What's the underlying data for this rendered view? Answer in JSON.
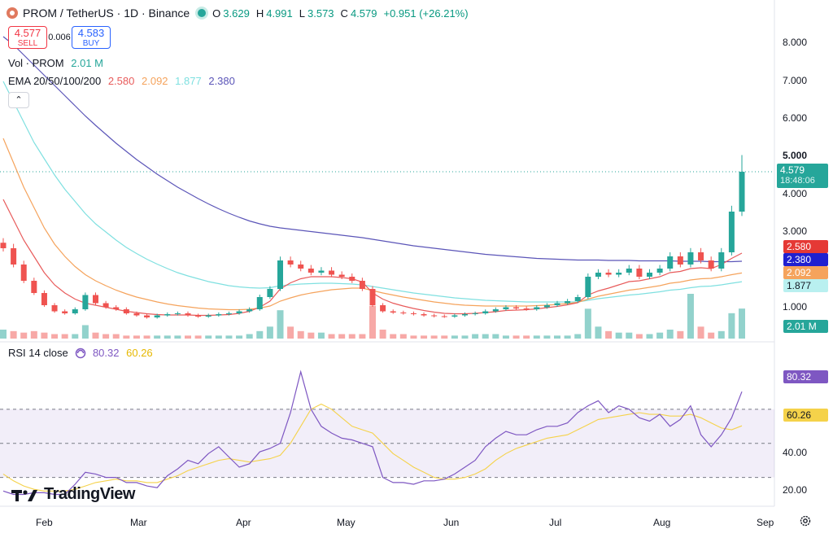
{
  "header": {
    "symbol": "PROM / TetherUS · 1D · Binance",
    "open_label": "O",
    "open": "3.629",
    "high_label": "H",
    "high": "4.991",
    "low_label": "L",
    "low": "3.573",
    "close_label": "C",
    "close": "4.579",
    "change": "+0.951 (+26.21%)"
  },
  "trade": {
    "sell_price": "4.577",
    "sell_label": "SELL",
    "spread": "0.006",
    "buy_price": "4.583",
    "buy_label": "BUY"
  },
  "legend": {
    "vol_label": "Vol · PROM",
    "vol_value": "2.01 M",
    "ema_label": "EMA 20/50/100/200",
    "ema20": "2.580",
    "ema50": "2.092",
    "ema100": "1.877",
    "ema200": "2.380",
    "rsi_label": "RSI 14 close",
    "rsi_value": "80.32",
    "rsi_ma_value": "60.26"
  },
  "collapse_icon": "chevron-up",
  "price_axis": [
    "8.000",
    "7.000",
    "6.000",
    "5.000",
    "4.000",
    "3.000",
    "1.000"
  ],
  "rsi_axis": [
    "40.00",
    "20.00"
  ],
  "time_axis": [
    "Feb",
    "Mar",
    "Apr",
    "May",
    "Jun",
    "Jul",
    "Aug",
    "Sep"
  ],
  "tags": {
    "price": "4.579",
    "countdown": "18:48:06",
    "ema20": "2.580",
    "ema200": "2.380",
    "ema50": "2.092",
    "ema100": "1.877",
    "volume": "2.01 M",
    "rsi": "80.32",
    "rsi_ma": "60.26"
  },
  "logo_text": "TradingView",
  "colors": {
    "up": "#26a69a",
    "down": "#ef5350",
    "ema20": "#e85b5b",
    "ema50": "#f5a35c",
    "ema100": "#7fe0e0",
    "ema200": "#5b55b8",
    "rsi": "#7e57c2",
    "rsi_ma": "#f5d24a"
  },
  "chart_data": {
    "type": "candlestick",
    "x": [
      "Jan 21",
      "Jan 24",
      "Jan 27",
      "Jan 30",
      "Feb 2",
      "Feb 5",
      "Feb 8",
      "Feb 11",
      "Feb 14",
      "Feb 17",
      "Feb 20",
      "Feb 23",
      "Feb 26",
      "Mar 1",
      "Mar 4",
      "Mar 7",
      "Mar 10",
      "Mar 13",
      "Mar 16",
      "Mar 19",
      "Mar 22",
      "Mar 25",
      "Mar 28",
      "Mar 31",
      "Apr 3",
      "Apr 6",
      "Apr 9",
      "Apr 12",
      "Apr 15",
      "Apr 18",
      "Apr 21",
      "Apr 24",
      "Apr 27",
      "Apr 30",
      "May 3",
      "May 6",
      "May 9",
      "May 12",
      "May 15",
      "May 18",
      "May 21",
      "May 24",
      "May 27",
      "May 30",
      "Jun 2",
      "Jun 5",
      "Jun 8",
      "Jun 11",
      "Jun 14",
      "Jun 17",
      "Jun 20",
      "Jun 23",
      "Jun 26",
      "Jun 29",
      "Jul 2",
      "Jul 5",
      "Jul 8",
      "Jul 11",
      "Jul 14",
      "Jul 17",
      "Jul 20",
      "Jul 23",
      "Jul 26",
      "Jul 29",
      "Aug 1",
      "Aug 4",
      "Aug 7",
      "Aug 10",
      "Aug 13",
      "Aug 16",
      "Aug 19",
      "Aug 22",
      "Aug 24"
    ],
    "close": [
      2.7,
      2.3,
      1.9,
      1.6,
      1.3,
      1.15,
      1.1,
      1.2,
      1.55,
      1.35,
      1.25,
      1.2,
      1.1,
      1.05,
      1.0,
      1.05,
      1.08,
      1.1,
      1.05,
      1.02,
      1.05,
      1.08,
      1.1,
      1.15,
      1.2,
      1.5,
      1.7,
      2.4,
      2.3,
      2.2,
      2.1,
      2.15,
      2.05,
      2.0,
      1.9,
      1.7,
      1.3,
      1.15,
      1.12,
      1.1,
      1.08,
      1.05,
      1.03,
      1.02,
      1.05,
      1.08,
      1.1,
      1.15,
      1.2,
      1.25,
      1.22,
      1.2,
      1.25,
      1.3,
      1.35,
      1.4,
      1.5,
      2.0,
      2.1,
      2.05,
      2.1,
      2.2,
      2.0,
      2.1,
      2.2,
      2.5,
      2.3,
      2.6,
      2.4,
      2.2,
      2.6,
      3.6,
      4.579
    ],
    "ema20": [
      3.9,
      3.4,
      2.9,
      2.5,
      2.1,
      1.8,
      1.6,
      1.45,
      1.35,
      1.3,
      1.25,
      1.2,
      1.15,
      1.12,
      1.09,
      1.07,
      1.06,
      1.06,
      1.06,
      1.05,
      1.05,
      1.06,
      1.07,
      1.1,
      1.15,
      1.25,
      1.4,
      1.7,
      1.85,
      1.95,
      2.0,
      2.0,
      2.0,
      1.98,
      1.95,
      1.87,
      1.6,
      1.45,
      1.35,
      1.28,
      1.22,
      1.17,
      1.13,
      1.1,
      1.09,
      1.09,
      1.1,
      1.12,
      1.14,
      1.17,
      1.18,
      1.19,
      1.21,
      1.24,
      1.27,
      1.31,
      1.36,
      1.55,
      1.65,
      1.72,
      1.8,
      1.88,
      1.9,
      1.95,
      2.0,
      2.1,
      2.13,
      2.2,
      2.22,
      2.2,
      2.3,
      2.45,
      2.58
    ],
    "ema50": [
      5.4,
      4.8,
      4.2,
      3.7,
      3.2,
      2.8,
      2.5,
      2.25,
      2.05,
      1.9,
      1.78,
      1.67,
      1.58,
      1.5,
      1.44,
      1.38,
      1.33,
      1.29,
      1.26,
      1.23,
      1.21,
      1.2,
      1.19,
      1.19,
      1.2,
      1.23,
      1.28,
      1.4,
      1.48,
      1.55,
      1.6,
      1.64,
      1.68,
      1.7,
      1.72,
      1.72,
      1.66,
      1.6,
      1.55,
      1.5,
      1.46,
      1.42,
      1.38,
      1.35,
      1.32,
      1.3,
      1.29,
      1.28,
      1.28,
      1.28,
      1.28,
      1.28,
      1.29,
      1.3,
      1.32,
      1.34,
      1.37,
      1.45,
      1.52,
      1.57,
      1.62,
      1.67,
      1.7,
      1.74,
      1.78,
      1.84,
      1.87,
      1.92,
      1.95,
      1.96,
      2.0,
      2.05,
      2.092
    ],
    "ema100": [
      6.8,
      6.3,
      5.8,
      5.3,
      4.9,
      4.5,
      4.15,
      3.85,
      3.55,
      3.3,
      3.1,
      2.9,
      2.72,
      2.57,
      2.43,
      2.31,
      2.2,
      2.1,
      2.02,
      1.95,
      1.88,
      1.83,
      1.78,
      1.75,
      1.73,
      1.72,
      1.73,
      1.78,
      1.8,
      1.82,
      1.83,
      1.84,
      1.84,
      1.83,
      1.82,
      1.8,
      1.76,
      1.72,
      1.68,
      1.64,
      1.6,
      1.57,
      1.54,
      1.51,
      1.48,
      1.46,
      1.44,
      1.42,
      1.41,
      1.4,
      1.39,
      1.38,
      1.38,
      1.38,
      1.38,
      1.38,
      1.38,
      1.42,
      1.46,
      1.49,
      1.52,
      1.55,
      1.57,
      1.6,
      1.63,
      1.67,
      1.69,
      1.73,
      1.76,
      1.77,
      1.8,
      1.84,
      1.877
    ],
    "ema200": [
      7.9,
      7.7,
      7.45,
      7.2,
      6.95,
      6.7,
      6.45,
      6.2,
      5.95,
      5.72,
      5.5,
      5.28,
      5.08,
      4.88,
      4.7,
      4.52,
      4.36,
      4.2,
      4.06,
      3.92,
      3.79,
      3.67,
      3.56,
      3.46,
      3.37,
      3.3,
      3.24,
      3.2,
      3.17,
      3.14,
      3.11,
      3.08,
      3.05,
      3.02,
      2.99,
      2.96,
      2.92,
      2.88,
      2.84,
      2.8,
      2.76,
      2.73,
      2.7,
      2.67,
      2.64,
      2.61,
      2.58,
      2.55,
      2.53,
      2.51,
      2.49,
      2.47,
      2.45,
      2.44,
      2.43,
      2.42,
      2.41,
      2.41,
      2.41,
      2.4,
      2.4,
      2.4,
      2.39,
      2.39,
      2.39,
      2.39,
      2.38,
      2.38,
      2.38,
      2.37,
      2.37,
      2.37,
      2.38
    ],
    "volume": [
      0.6,
      0.5,
      0.4,
      0.5,
      0.4,
      0.3,
      0.3,
      0.3,
      0.9,
      0.4,
      0.3,
      0.3,
      0.2,
      0.2,
      0.2,
      0.2,
      0.2,
      0.2,
      0.2,
      0.2,
      0.2,
      0.2,
      0.2,
      0.2,
      0.3,
      0.5,
      0.8,
      1.9,
      0.8,
      0.5,
      0.4,
      0.4,
      0.3,
      0.3,
      0.3,
      0.3,
      2.2,
      0.6,
      0.3,
      0.3,
      0.2,
      0.2,
      0.2,
      0.2,
      0.2,
      0.2,
      0.3,
      0.3,
      0.3,
      0.2,
      0.2,
      0.2,
      0.2,
      0.2,
      0.2,
      0.2,
      0.3,
      2.0,
      0.8,
      0.5,
      0.4,
      0.4,
      0.3,
      0.3,
      0.4,
      0.6,
      0.5,
      3.0,
      0.8,
      0.4,
      0.5,
      1.7,
      2.01
    ],
    "rsi": [
      22,
      20,
      20,
      21,
      21,
      20,
      20,
      26,
      33,
      32,
      30,
      30,
      27,
      27,
      25,
      24,
      31,
      35,
      40,
      38,
      44,
      48,
      42,
      36,
      38,
      45,
      47,
      50,
      68,
      92,
      70,
      60,
      56,
      53,
      52,
      50,
      48,
      30,
      27,
      27,
      26,
      28,
      28,
      29,
      32,
      36,
      40,
      48,
      53,
      57,
      55,
      55,
      58,
      60,
      60,
      62,
      68,
      72,
      75,
      68,
      72,
      70,
      65,
      63,
      67,
      60,
      64,
      72,
      55,
      48,
      55,
      65,
      80.32
    ],
    "rsi_ma": [
      32,
      28,
      25,
      23,
      22,
      22,
      22,
      23,
      25,
      27,
      28,
      29,
      28,
      28,
      27,
      27,
      29,
      31,
      34,
      36,
      38,
      40,
      41,
      40,
      39,
      40,
      41,
      43,
      50,
      60,
      70,
      73,
      70,
      65,
      60,
      58,
      56,
      50,
      44,
      40,
      36,
      33,
      30,
      29,
      29,
      30,
      32,
      35,
      40,
      44,
      47,
      49,
      51,
      53,
      54,
      55,
      58,
      61,
      64,
      65,
      66,
      67,
      68,
      67,
      67,
      66,
      66,
      67,
      65,
      62,
      59,
      58,
      60.26
    ],
    "ylim": [
      0.6,
      8.6
    ],
    "rsi_lim": [
      15,
      100
    ]
  }
}
